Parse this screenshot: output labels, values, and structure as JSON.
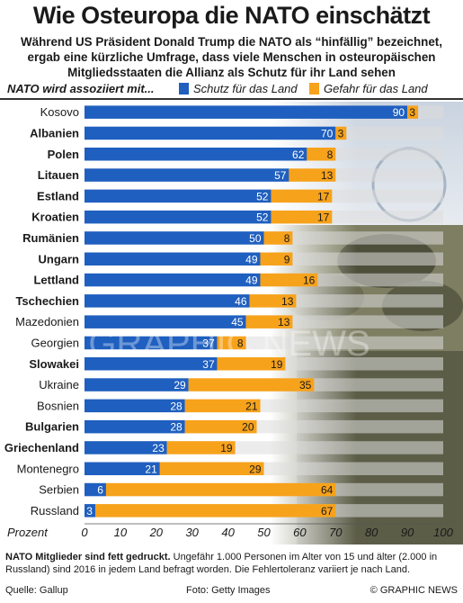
{
  "title": "Wie Osteuropa die NATO einschätzt",
  "subtitle": "Während US Präsident Donald Trump die NATO als “hinfällig” bezeichnet, ergab eine kürzliche Umfrage, dass viele Menschen in osteuropäischen Mitgliedsstaaten die Allianz als Schutz für ihr Land sehen",
  "legend": {
    "title": "NATO wird assoziiert mit...",
    "protection": "Schutz für das Land",
    "threat": "Gefahr für das Land"
  },
  "colors": {
    "protection": "#1f5fbf",
    "threat": "#f7a21b",
    "track": "#dcdcdc"
  },
  "watermark": "GRAPHIC NEWS",
  "chart_data": {
    "type": "bar",
    "orientation": "horizontal",
    "stacked": true,
    "xlabel": "Prozent",
    "xlim": [
      0,
      100
    ],
    "xticks": [
      0,
      10,
      20,
      30,
      40,
      50,
      60,
      70,
      80,
      90,
      100
    ],
    "categories": [
      "Kosovo",
      "Albanien",
      "Polen",
      "Litauen",
      "Estland",
      "Kroatien",
      "Rumänien",
      "Ungarn",
      "Lettland",
      "Tschechien",
      "Mazedonien",
      "Georgien",
      "Slowakei",
      "Ukraine",
      "Bosnien",
      "Bulgarien",
      "Griechenland",
      "Montenegro",
      "Serbien",
      "Russland"
    ],
    "nato_members": [
      false,
      true,
      true,
      true,
      true,
      true,
      true,
      true,
      true,
      true,
      false,
      false,
      true,
      false,
      false,
      true,
      true,
      false,
      false,
      false
    ],
    "series": [
      {
        "name": "Schutz für das Land",
        "values": [
          90,
          70,
          62,
          57,
          52,
          52,
          50,
          49,
          49,
          46,
          45,
          37,
          37,
          29,
          28,
          28,
          23,
          21,
          6,
          3
        ]
      },
      {
        "name": "Gefahr für das Land",
        "values": [
          3,
          3,
          8,
          13,
          17,
          17,
          8,
          9,
          16,
          13,
          13,
          8,
          19,
          35,
          21,
          20,
          19,
          29,
          64,
          67
        ]
      }
    ]
  },
  "footnote": {
    "bold": "NATO Mitglieder sind fett gedruckt.",
    "text": "Ungefähr 1.000 Personen im Alter von 15 und älter (2.000 in Russland) sind 2016 in jedem Land befragt worden. Die Fehlertoleranz variiert je nach Land."
  },
  "source": "Quelle: Gallup",
  "photo": "Foto: Getty Images",
  "credit": "© GRAPHIC NEWS"
}
